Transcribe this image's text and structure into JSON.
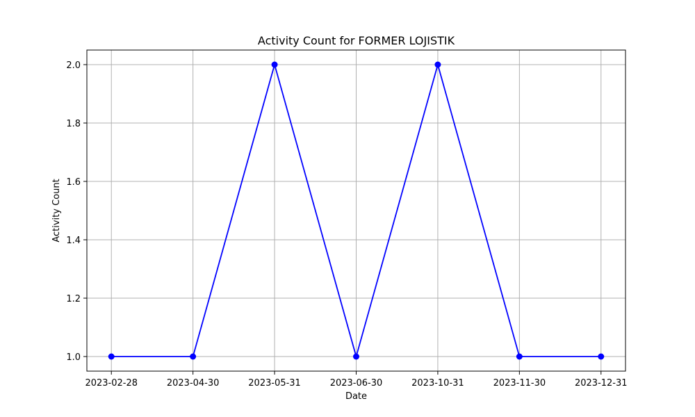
{
  "chart_data": {
    "type": "line",
    "title": "Activity Count for FORMER LOJISTIK",
    "xlabel": "Date",
    "ylabel": "Activity Count",
    "categories": [
      "2023-02-28",
      "2023-04-30",
      "2023-05-31",
      "2023-06-30",
      "2023-10-31",
      "2023-11-30",
      "2023-12-31"
    ],
    "series": [
      {
        "values": [
          1,
          1,
          2,
          1,
          2,
          1,
          1
        ],
        "color": "#0000ff",
        "marker": "circle"
      }
    ],
    "yticks": [
      "1.0",
      "1.2",
      "1.4",
      "1.6",
      "1.8",
      "2.0"
    ],
    "ylim": [
      0.95,
      2.05
    ],
    "grid": true,
    "legend": "none"
  }
}
